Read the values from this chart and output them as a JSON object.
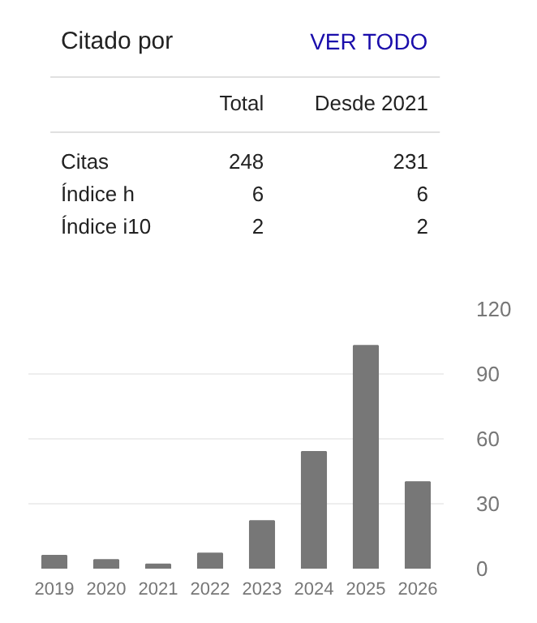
{
  "chart_data": [
    {
      "type": "other",
      "title": "Citado por",
      "annotations": [
        "VER TODO",
        "Total",
        "Desde 2021",
        "Citas",
        "248",
        "231",
        "Índice h",
        "6",
        "6",
        "Índice i10",
        "2",
        "2"
      ]
    },
    {
      "type": "bar",
      "categories": [
        "2019",
        "2020",
        "2021",
        "2022",
        "2023",
        "2024",
        "2025",
        "2026"
      ],
      "values": [
        6,
        4,
        2,
        7,
        22,
        54,
        103,
        40
      ],
      "color": "#777777",
      "ylim": [
        0,
        120
      ],
      "yticks": [
        0,
        30,
        60,
        90,
        120
      ],
      "grid": "y"
    }
  ]
}
